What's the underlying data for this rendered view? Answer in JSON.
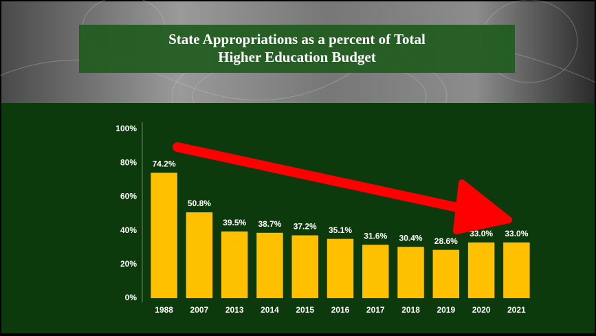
{
  "chart_data": {
    "type": "bar",
    "title": [
      "State Appropriations as a percent of Total",
      "Higher Education Budget"
    ],
    "categories": [
      "1988",
      "2007",
      "2013",
      "2014",
      "2015",
      "2016",
      "2017",
      "2018",
      "2019",
      "2020",
      "2021"
    ],
    "values": [
      74.2,
      50.8,
      39.5,
      38.7,
      37.2,
      35.1,
      31.6,
      30.4,
      28.6,
      33.0,
      33.0
    ],
    "value_labels": [
      "74.2%",
      "50.8%",
      "39.5%",
      "38.7%",
      "37.2%",
      "35.1%",
      "31.6%",
      "30.4%",
      "28.6%",
      "33.0%",
      "33.0%"
    ],
    "color": "#ffc000",
    "ylim": [
      0,
      100
    ],
    "yticks": [
      {
        "value": 0,
        "label": "0%"
      },
      {
        "value": 20,
        "label": "20%"
      },
      {
        "value": 40,
        "label": "40%"
      },
      {
        "value": 60,
        "label": "60%"
      },
      {
        "value": 80,
        "label": "80%"
      },
      {
        "value": 100,
        "label": "100%"
      }
    ]
  }
}
